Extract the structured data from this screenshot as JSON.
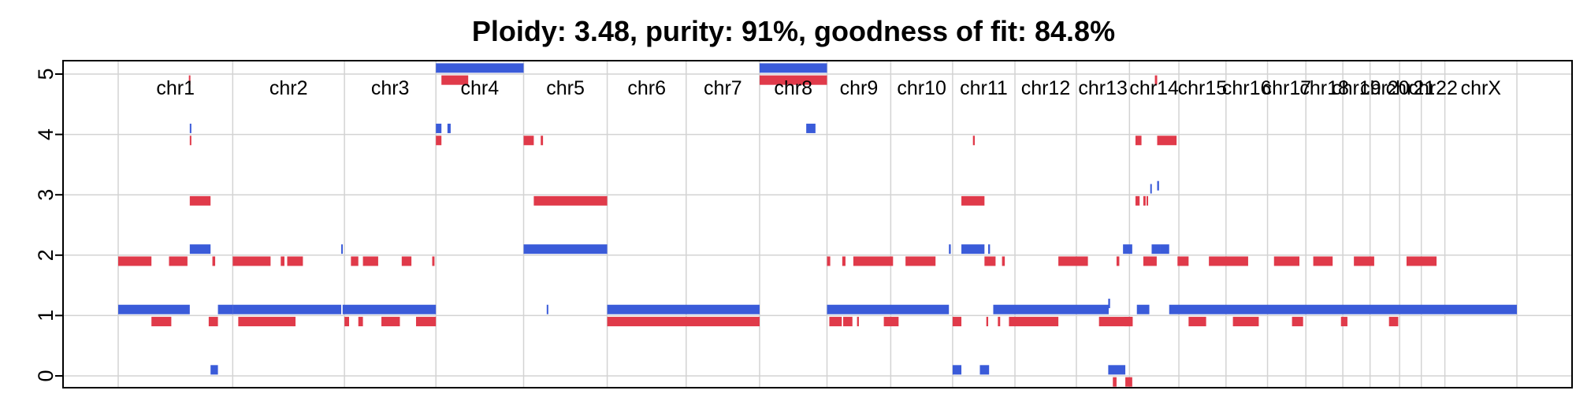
{
  "chart_data": {
    "type": "scatter",
    "title": "Ploidy: 3.48, purity: 91%, goodness of fit: 84.8%",
    "xlabel": "",
    "ylabel": "",
    "ylim": [
      0,
      5
    ],
    "yticks": [
      "0",
      "1",
      "2",
      "3",
      "4",
      "5"
    ],
    "grid": true,
    "colors": {
      "major": "#3a5bd9",
      "minor": "#e03a4a",
      "grid": "#d3d3d3",
      "frame": "#000000"
    },
    "chromosomes": [
      {
        "name": "chr1",
        "start": 0,
        "end": 248
      },
      {
        "name": "chr2",
        "start": 248,
        "end": 490
      },
      {
        "name": "chr3",
        "start": 490,
        "end": 688
      },
      {
        "name": "chr4",
        "start": 688,
        "end": 878
      },
      {
        "name": "chr5",
        "start": 878,
        "end": 1059
      },
      {
        "name": "chr6",
        "start": 1059,
        "end": 1230
      },
      {
        "name": "chr7",
        "start": 1230,
        "end": 1389
      },
      {
        "name": "chr8",
        "start": 1389,
        "end": 1535
      },
      {
        "name": "chr9",
        "start": 1535,
        "end": 1673
      },
      {
        "name": "chr10",
        "start": 1673,
        "end": 1807
      },
      {
        "name": "chr11",
        "start": 1807,
        "end": 1942
      },
      {
        "name": "chr12",
        "start": 1942,
        "end": 2075
      },
      {
        "name": "chr13",
        "start": 2075,
        "end": 2190
      },
      {
        "name": "chr14",
        "start": 2190,
        "end": 2297
      },
      {
        "name": "chr15",
        "start": 2297,
        "end": 2399
      },
      {
        "name": "chr16",
        "start": 2399,
        "end": 2489
      },
      {
        "name": "chr17",
        "start": 2489,
        "end": 2572
      },
      {
        "name": "chr18",
        "start": 2572,
        "end": 2652
      },
      {
        "name": "chr19",
        "start": 2652,
        "end": 2711
      },
      {
        "name": "chr20",
        "start": 2711,
        "end": 2775
      },
      {
        "name": "chr21",
        "start": 2775,
        "end": 2822
      },
      {
        "name": "chr22",
        "start": 2822,
        "end": 2873
      },
      {
        "name": "chrX",
        "start": 2873,
        "end": 3029
      }
    ],
    "series": [
      {
        "name": "",
        "color_key": "major",
        "segments": [
          [
            0,
            155,
            1.1
          ],
          [
            155,
            158,
            4.1
          ],
          [
            155,
            200,
            2.1
          ],
          [
            200,
            216,
            0.1
          ],
          [
            216,
            248,
            1.1
          ],
          [
            248,
            483,
            1.1
          ],
          [
            483,
            486,
            2.1
          ],
          [
            486,
            688,
            1.1
          ],
          [
            688,
            878,
            5.1
          ],
          [
            688,
            700,
            4.1
          ],
          [
            713,
            720,
            4.1
          ],
          [
            878,
            1059,
            2.1
          ],
          [
            928,
            931,
            1.1
          ],
          [
            1059,
            1389,
            1.1
          ],
          [
            1389,
            1535,
            5.1
          ],
          [
            1490,
            1510,
            4.1
          ],
          [
            1535,
            1799,
            1.1
          ],
          [
            1799,
            1803,
            2.1
          ],
          [
            1807,
            1826,
            0.1
          ],
          [
            1826,
            1876,
            2.1
          ],
          [
            1866,
            1886,
            0.1
          ],
          [
            1884,
            1888,
            2.1
          ],
          [
            1895,
            2145,
            1.1
          ],
          [
            2144,
            2148,
            1.2
          ],
          [
            2144,
            2181,
            0.1
          ],
          [
            2176,
            2196,
            2.1
          ],
          [
            2206,
            2233,
            1.1
          ],
          [
            2235,
            2238,
            3.1
          ],
          [
            2238,
            2256,
            2.1
          ],
          [
            2250,
            2254,
            3.15
          ],
          [
            2256,
            2276,
            2.1
          ],
          [
            2276,
            3029,
            1.1
          ]
        ]
      },
      {
        "name": "",
        "color_key": "minor",
        "segments": [
          [
            0,
            72,
            1.9
          ],
          [
            72,
            115,
            0.9
          ],
          [
            110,
            150,
            1.9
          ],
          [
            153,
            156,
            4.9
          ],
          [
            155,
            158,
            3.9
          ],
          [
            155,
            200,
            2.9
          ],
          [
            196,
            216,
            0.9
          ],
          [
            204,
            210,
            1.9
          ],
          [
            248,
            330,
            1.9
          ],
          [
            260,
            380,
            0.9
          ],
          [
            352,
            360,
            1.9
          ],
          [
            366,
            400,
            1.9
          ],
          [
            378,
            384,
            0.9
          ],
          [
            490,
            500,
            0.9
          ],
          [
            504,
            520,
            1.9
          ],
          [
            520,
            530,
            0.9
          ],
          [
            530,
            563,
            1.9
          ],
          [
            570,
            610,
            0.9
          ],
          [
            614,
            635,
            1.9
          ],
          [
            645,
            688,
            0.9
          ],
          [
            680,
            685,
            1.9
          ],
          [
            688,
            700,
            3.9
          ],
          [
            700,
            758,
            4.9
          ],
          [
            878,
            900,
            3.9
          ],
          [
            915,
            920,
            3.9
          ],
          [
            900,
            1059,
            2.9
          ],
          [
            1059,
            1389,
            0.9
          ],
          [
            1389,
            1535,
            4.9
          ],
          [
            1535,
            1542,
            1.9
          ],
          [
            1540,
            1567,
            0.9
          ],
          [
            1568,
            1575,
            1.9
          ],
          [
            1570,
            1590,
            0.9
          ],
          [
            1592,
            1678,
            1.9
          ],
          [
            1600,
            1604,
            0.9
          ],
          [
            1658,
            1690,
            0.9
          ],
          [
            1705,
            1770,
            1.9
          ],
          [
            1807,
            1826,
            0.9
          ],
          [
            1826,
            1876,
            2.9
          ],
          [
            1851,
            1855,
            3.9
          ],
          [
            1876,
            1900,
            1.9
          ],
          [
            1880,
            1884,
            0.9
          ],
          [
            1905,
            1910,
            0.9
          ],
          [
            1914,
            1920,
            1.9
          ],
          [
            1929,
            2036,
            0.9
          ],
          [
            2036,
            2100,
            1.9
          ],
          [
            2124,
            2197,
            0.9
          ],
          [
            2154,
            2162,
            -0.1
          ],
          [
            2162,
            2168,
            1.9
          ],
          [
            2179,
            2196,
            0.9
          ],
          [
            2181,
            2196,
            -0.1
          ],
          [
            2203,
            2212,
            2.9
          ],
          [
            2203,
            2216,
            3.9
          ],
          [
            2220,
            2225,
            2.9
          ],
          [
            2220,
            2249,
            1.9
          ],
          [
            2227,
            2229,
            2.9
          ],
          [
            2245,
            2250,
            4.9
          ],
          [
            2250,
            2292,
            3.9
          ],
          [
            2294,
            2318,
            1.9
          ],
          [
            2318,
            2356,
            0.9
          ],
          [
            2362,
            2447,
            1.9
          ],
          [
            2414,
            2470,
            0.9
          ],
          [
            2503,
            2558,
            1.9
          ],
          [
            2542,
            2566,
            0.9
          ],
          [
            2588,
            2630,
            1.9
          ],
          [
            2648,
            2662,
            0.9
          ],
          [
            2676,
            2720,
            1.9
          ],
          [
            2752,
            2772,
            0.9
          ],
          [
            2790,
            2855,
            1.9
          ]
        ]
      }
    ]
  }
}
